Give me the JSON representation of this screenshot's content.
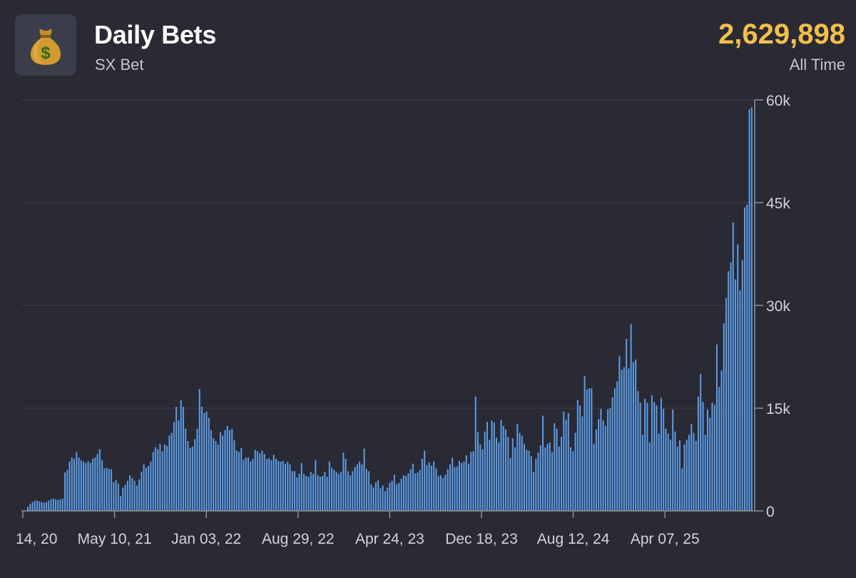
{
  "header": {
    "title": "Daily Bets",
    "subtitle": "SX Bet",
    "total_value": "2,629,898",
    "total_label": "All Time",
    "icon": "money-bag-icon",
    "accent_color": "#f3bf4c"
  },
  "chart_data": {
    "type": "bar",
    "bar_color": "#5b9ce6",
    "grid": true,
    "y_axis_position": "right",
    "ylim": [
      0,
      60000
    ],
    "y_ticks": [
      0,
      15000,
      30000,
      45000,
      60000
    ],
    "y_tick_labels": [
      "0",
      "15k",
      "30k",
      "45k",
      "60k"
    ],
    "x_tick_labels": [
      "14, 20",
      "May 10, 21",
      "Jan 03, 22",
      "Aug 29, 22",
      "Apr 24, 23",
      "Dec 18, 23",
      "Aug 12, 24",
      "Apr 07, 25"
    ],
    "values": [
      600,
      1000,
      1300,
      1500,
      1500,
      1400,
      1300,
      1200,
      1300,
      1500,
      1700,
      1800,
      1700,
      1600,
      1700,
      1800,
      5600,
      6000,
      7200,
      7800,
      7600,
      8600,
      7800,
      7400,
      7200,
      7000,
      7300,
      7000,
      7600,
      7800,
      8300,
      9000,
      7400,
      6200,
      6300,
      6100,
      6100,
      4200,
      4500,
      4000,
      2200,
      3400,
      3800,
      4400,
      5200,
      4800,
      4400,
      3700,
      4600,
      5700,
      6800,
      6300,
      6600,
      7200,
      8600,
      9300,
      9000,
      9800,
      8700,
      9700,
      9500,
      11000,
      11400,
      13000,
      15200,
      13200,
      16200,
      15200,
      12000,
      10200,
      9200,
      9400,
      10500,
      12000,
      17800,
      15200,
      14300,
      14500,
      13600,
      11800,
      10600,
      10200,
      9700,
      11500,
      11000,
      11800,
      12400,
      11800,
      12000,
      10300,
      8800,
      8600,
      9200,
      7500,
      7800,
      7800,
      7200,
      7600,
      8900,
      8700,
      8400,
      8800,
      8300,
      7600,
      7700,
      7400,
      8200,
      7600,
      7300,
      7200,
      7300,
      6900,
      7200,
      6800,
      5800,
      5800,
      4900,
      5400,
      7000,
      5400,
      5100,
      5000,
      5700,
      5400,
      7400,
      5200,
      5000,
      5100,
      5700,
      5000,
      7200,
      6300,
      6000,
      5700,
      5400,
      5700,
      8500,
      7600,
      5800,
      5200,
      5800,
      6400,
      6800,
      7200,
      6800,
      9100,
      6100,
      5800,
      3900,
      3400,
      4200,
      4500,
      3300,
      3700,
      2900,
      3400,
      4100,
      4400,
      5300,
      3900,
      4100,
      4700,
      5200,
      5100,
      5500,
      6100,
      6900,
      5500,
      5600,
      6000,
      7600,
      8800,
      6700,
      7100,
      6600,
      7200,
      6200,
      5100,
      5200,
      4800,
      5300,
      6100,
      6800,
      7800,
      6400,
      6500,
      7300,
      7000,
      7200,
      8100,
      6900,
      8600,
      8700,
      16700,
      11500,
      9700,
      9000,
      11600,
      13000,
      10400,
      13200,
      12900,
      10700,
      10000,
      13300,
      12400,
      11900,
      10800,
      7700,
      10600,
      9300,
      12700,
      11400,
      11000,
      9800,
      8900,
      8800,
      8000,
      5700,
      7600,
      8500,
      9600,
      13900,
      9300,
      9800,
      10000,
      8600,
      12800,
      12000,
      9400,
      10800,
      14500,
      13300,
      14300,
      9300,
      8700,
      11400,
      16200,
      15400,
      13800,
      19700,
      17700,
      17900,
      17900,
      9800,
      11900,
      13400,
      14900,
      13200,
      12400,
      14800,
      15000,
      16600,
      17900,
      18900,
      22600,
      20600,
      21000,
      25100,
      20800,
      27300,
      21700,
      22100,
      17500,
      15800,
      11100,
      16400,
      15800,
      10000,
      16900,
      15900,
      15400,
      11300,
      16500,
      14900,
      12000,
      11300,
      10400,
      14800,
      11600,
      9400,
      10300,
      6200,
      9700,
      10400,
      11100,
      12700,
      11400,
      10200,
      16700,
      20000,
      15900,
      11100,
      14800,
      13600,
      15800,
      15500,
      24300,
      18100,
      20500,
      27400,
      31100,
      35000,
      36300,
      42100,
      33800,
      38900,
      32200,
      36600,
      44300,
      44700,
      58600,
      58900
    ]
  }
}
